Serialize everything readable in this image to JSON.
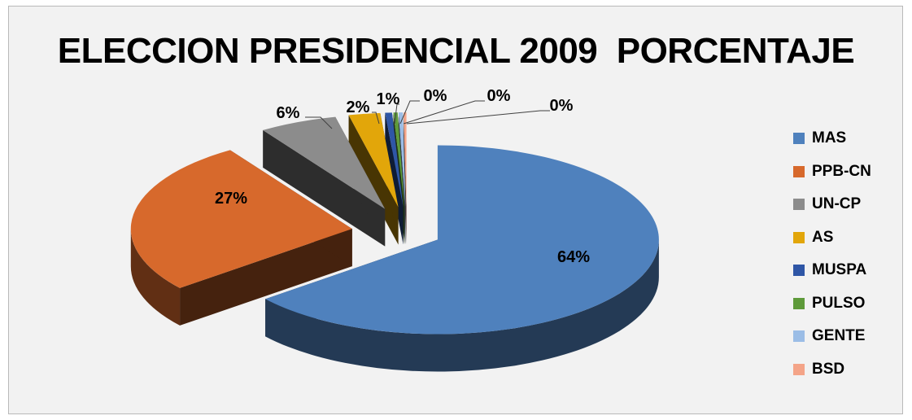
{
  "chart_data": {
    "type": "pie",
    "title": "ELECCION PRESIDENCIAL 2009  PORCENTAJE",
    "legend_position": "right",
    "exploded": true,
    "three_d": true,
    "slices": [
      {
        "name": "MAS",
        "value": 64.2,
        "label": "64%",
        "color": "#4f81bd"
      },
      {
        "name": "PPB-CN",
        "value": 26.5,
        "label": "27%",
        "color": "#d7692c"
      },
      {
        "name": "UN-CP",
        "value": 5.7,
        "label": "6%",
        "color": "#8c8c8c"
      },
      {
        "name": "AS",
        "value": 2.3,
        "label": "2%",
        "color": "#e2a60a"
      },
      {
        "name": "MUSPA",
        "value": 0.5,
        "label": "1%",
        "color": "#2f56a6"
      },
      {
        "name": "PULSO",
        "value": 0.3,
        "label": "0%",
        "color": "#5e9a3a"
      },
      {
        "name": "GENTE",
        "value": 0.3,
        "label": "0%",
        "color": "#9bbde6"
      },
      {
        "name": "BSD",
        "value": 0.2,
        "label": "0%",
        "color": "#f4a488"
      }
    ]
  }
}
